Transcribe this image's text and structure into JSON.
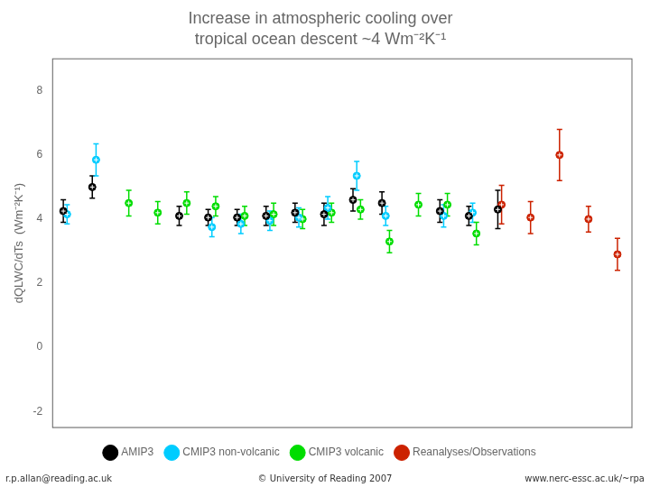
{
  "chart_data": {
    "type": "errorbar",
    "title": "Increase in atmospheric cooling over",
    "subtitle": "tropical ocean descent ~4 Wm⁻²K⁻¹",
    "y_label": "dQLWC/dTs  (Wm⁻²K⁻¹)",
    "annotations": [
      "r.p.allan@reading.ac.uk",
      "© University of Reading 2007",
      "www.nerc-essc.ac.uk/~rpa"
    ],
    "categories": [
      null,
      null,
      null,
      null,
      null,
      null,
      null,
      null,
      null,
      null,
      null,
      null,
      null,
      null,
      null,
      null,
      null,
      null,
      null,
      null
    ],
    "series": [
      {
        "name": "AMIP3",
        "color": "#000000",
        "values": [
          4.25,
          5.0,
          null,
          null,
          4.1,
          4.05,
          4.05,
          4.1,
          4.2,
          4.15,
          4.6,
          4.5,
          null,
          4.25,
          4.1,
          4.3,
          null,
          null,
          null,
          null
        ],
        "yerr": [
          0.35,
          0.35,
          null,
          null,
          0.3,
          0.25,
          0.25,
          0.3,
          0.3,
          0.35,
          0.35,
          0.35,
          null,
          0.35,
          0.3,
          0.6,
          null,
          null,
          null,
          null
        ]
      },
      {
        "name": "CMIP3 non-volcanic",
        "color": "#00ccff",
        "values": [
          4.15,
          5.85,
          null,
          null,
          null,
          3.75,
          3.85,
          3.95,
          4.05,
          4.35,
          5.35,
          4.1,
          null,
          4.1,
          4.2,
          null,
          null,
          null,
          null,
          null
        ],
        "yerr": [
          0.3,
          0.5,
          null,
          null,
          null,
          0.3,
          0.3,
          0.3,
          0.3,
          0.35,
          0.45,
          0.3,
          null,
          0.35,
          0.3,
          null,
          null,
          null,
          null,
          null
        ]
      },
      {
        "name": "CMIP3 volcanic",
        "color": "#00dd00",
        "values": [
          null,
          null,
          4.5,
          4.2,
          4.5,
          4.4,
          4.1,
          4.15,
          4.0,
          4.2,
          4.3,
          3.3,
          4.45,
          4.45,
          3.55,
          null,
          null,
          null,
          null,
          null
        ],
        "yerr": [
          null,
          null,
          0.4,
          0.35,
          0.35,
          0.3,
          0.3,
          0.35,
          0.3,
          0.3,
          0.3,
          0.35,
          0.35,
          0.35,
          0.35,
          null,
          null,
          null,
          null,
          null
        ]
      },
      {
        "name": "Reanalyses/Observations",
        "color": "#cc2200",
        "values": [
          null,
          null,
          null,
          null,
          null,
          null,
          null,
          null,
          null,
          null,
          null,
          null,
          null,
          null,
          null,
          4.45,
          4.05,
          6.0,
          4.0,
          2.9
        ],
        "yerr": [
          null,
          null,
          null,
          null,
          null,
          null,
          null,
          null,
          null,
          null,
          null,
          null,
          null,
          null,
          null,
          0.6,
          0.5,
          0.8,
          0.4,
          0.5
        ]
      }
    ],
    "ylim": [
      -2.5,
      9.0
    ],
    "yticks": [
      -2,
      0,
      2,
      4,
      6,
      8
    ],
    "grid": false,
    "legend": "bottom",
    "tick_labels": "y"
  }
}
